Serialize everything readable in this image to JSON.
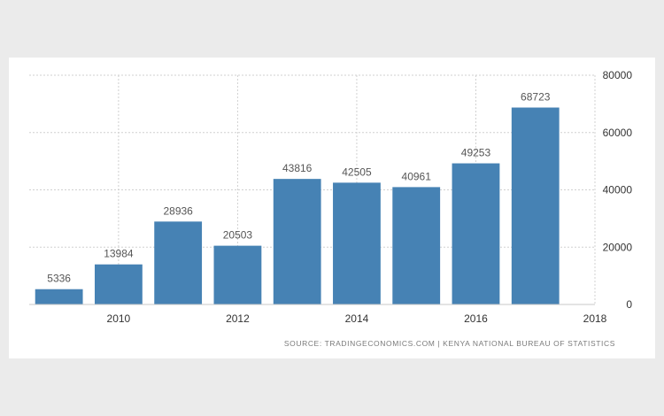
{
  "chart_data": {
    "type": "bar",
    "categories": [
      "2009",
      "2010",
      "2011",
      "2012",
      "2013",
      "2014",
      "2015",
      "2016",
      "2017"
    ],
    "values": [
      5336,
      13984,
      28936,
      20503,
      43816,
      42505,
      40961,
      49253,
      68723
    ],
    "data_labels": [
      "5336",
      "13984",
      "28936",
      "20503",
      "43816",
      "42505",
      "40961",
      "49253",
      "68723"
    ],
    "x_ticks": [
      "2010",
      "2012",
      "2014",
      "2016",
      "2018"
    ],
    "y_ticks": [
      "0",
      "20000",
      "40000",
      "60000",
      "80000"
    ],
    "ylim": [
      0,
      80000
    ],
    "xlim": [
      2008.5,
      2018
    ],
    "y_axis_side": "right",
    "grid": true,
    "bar_color": "#4682b4"
  },
  "source_text": "SOURCE: TRADINGECONOMICS.COM  |  KENYA NATIONAL BUREAU OF STATISTICS"
}
